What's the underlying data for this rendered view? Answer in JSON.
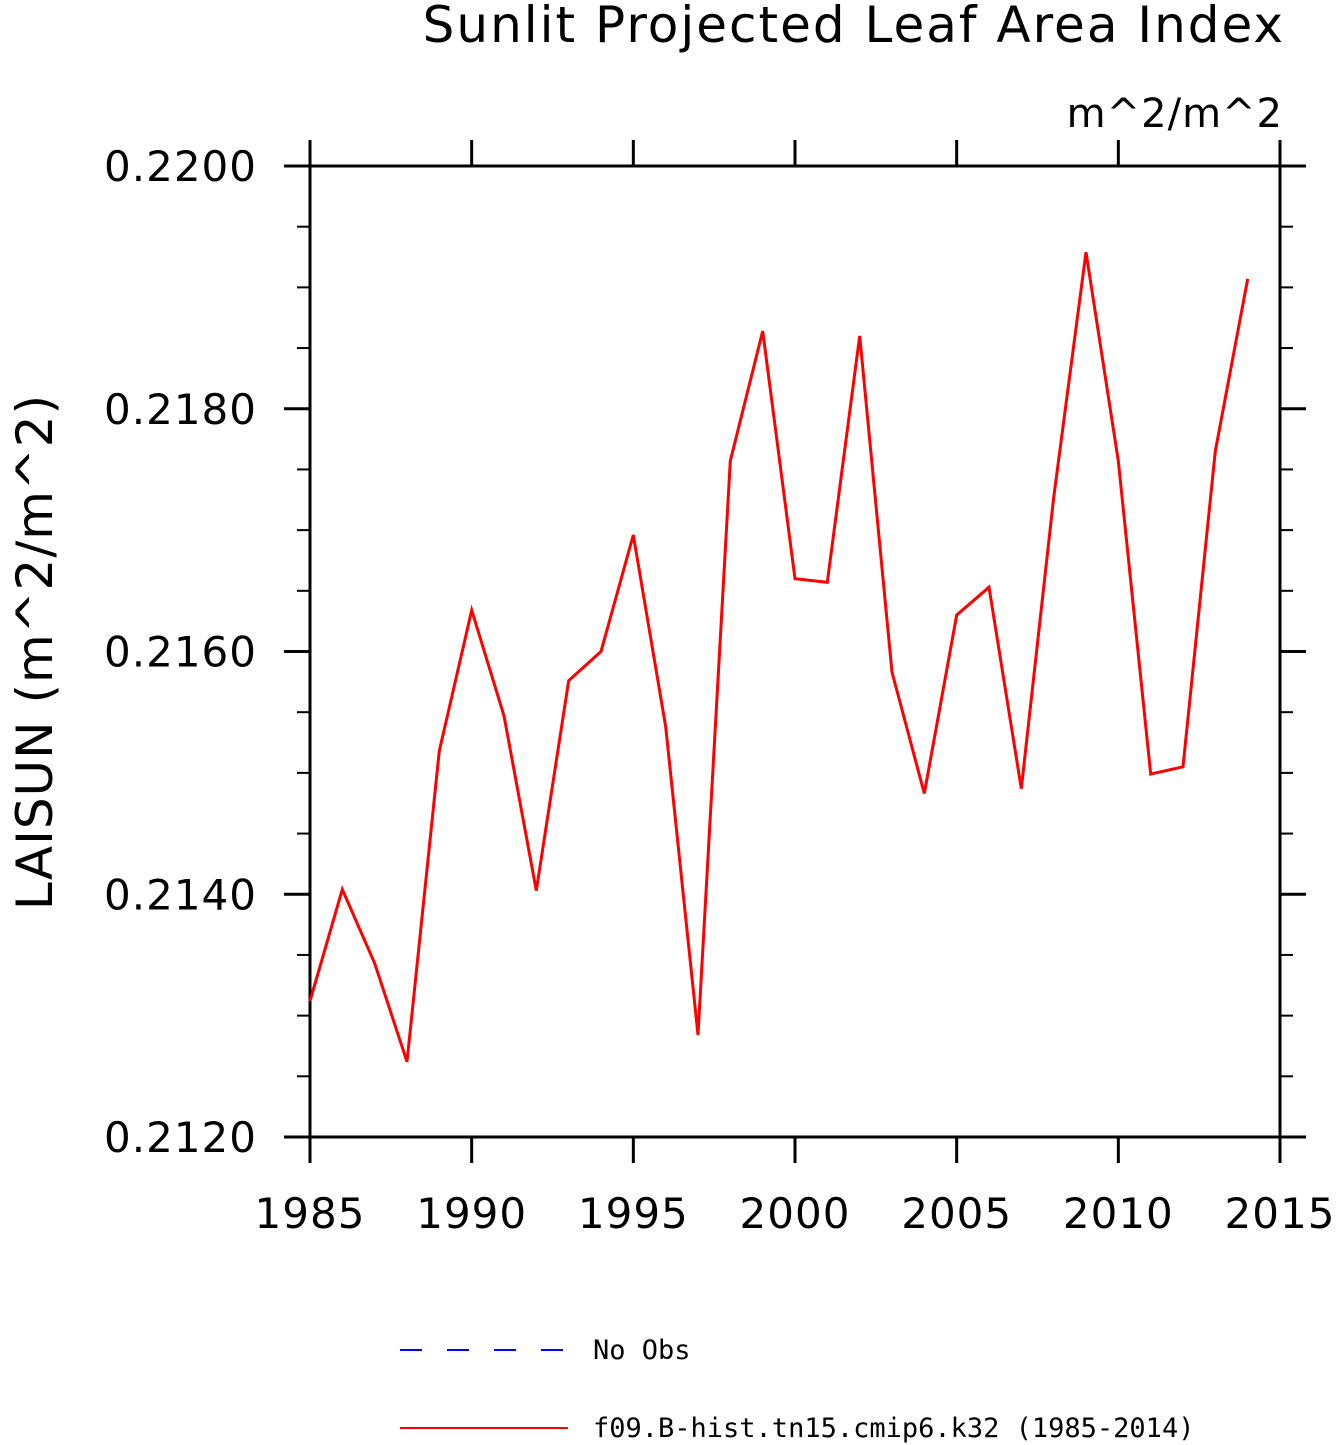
{
  "chart_data": {
    "type": "line",
    "title": "Sunlit Projected Leaf Area Index",
    "units_label": "m^2/m^2",
    "ylabel": "LAISUN (m^2/m^2)",
    "xlabel": "",
    "xlim": [
      1985,
      2015
    ],
    "ylim": [
      0.212,
      0.22
    ],
    "xticks": [
      1985,
      1990,
      1995,
      2000,
      2005,
      2010,
      2015
    ],
    "yticks": [
      "0.2120",
      "0.2140",
      "0.2160",
      "0.2180",
      "0.2200"
    ],
    "x_minor_step": 5,
    "y_minor_step": 0.0005,
    "grid": false,
    "legend_position": "bottom",
    "series": [
      {
        "name": "No Obs",
        "color": "#0000ff",
        "dash": "dashed",
        "x": [],
        "y": []
      },
      {
        "name": "f09.B-hist.tn15.cmip6.k32 (1985-2014)",
        "color": "#ff0000",
        "dash": "solid",
        "x": [
          1985,
          1986,
          1987,
          1988,
          1989,
          1990,
          1991,
          1992,
          1993,
          1994,
          1995,
          1996,
          1997,
          1998,
          1999,
          2000,
          2001,
          2002,
          2003,
          2004,
          2005,
          2006,
          2007,
          2008,
          2009,
          2010,
          2011,
          2012,
          2013,
          2014
        ],
        "y": [
          0.21312,
          0.21404,
          0.21343,
          0.21262,
          0.21518,
          0.21634,
          0.21547,
          0.21403,
          0.21576,
          0.216,
          0.21696,
          0.21538,
          0.21284,
          0.21757,
          0.21864,
          0.2166,
          0.21657,
          0.2186,
          0.21583,
          0.21483,
          0.2163,
          0.21653,
          0.21487,
          0.21727,
          0.21929,
          0.21757,
          0.21499,
          0.21505,
          0.21765,
          0.21907
        ]
      }
    ]
  }
}
